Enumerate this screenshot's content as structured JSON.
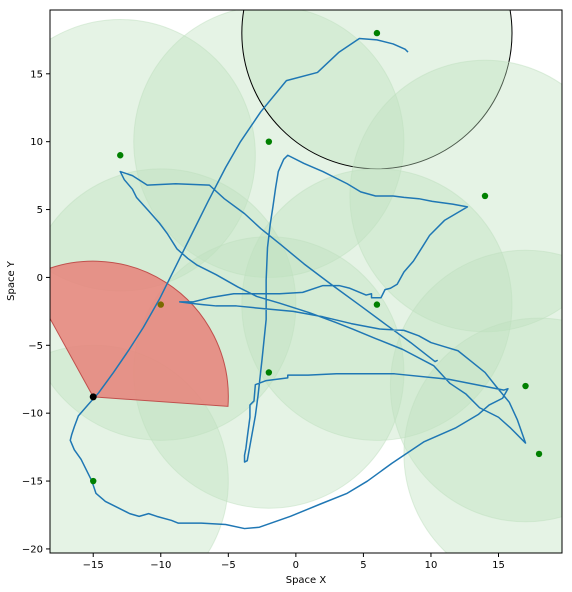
{
  "chart_data": {
    "type": "scatter",
    "xlabel": "Space X",
    "ylabel": "Space Y",
    "xlim": [
      -18.2,
      19.7
    ],
    "ylim": [
      -20.3,
      19.7
    ],
    "xticks": [
      -15,
      -10,
      -5,
      0,
      5,
      10,
      15
    ],
    "yticks": [
      -20,
      -15,
      -10,
      -5,
      0,
      5,
      10,
      15
    ],
    "grid": false,
    "colors": {
      "zone_fill": "#bfe0bf",
      "point": "#008000",
      "path": "#1f77b4",
      "sector": "#e8827a",
      "sector_edge": "#c0504d",
      "target_point": "#7a6a00",
      "agent": "#000000",
      "highlight_edge": "#000000"
    },
    "zones": [
      {
        "x": -13,
        "y": 9,
        "r": 10
      },
      {
        "x": -2,
        "y": 10,
        "r": 10
      },
      {
        "x": 6,
        "y": 18,
        "r": 10,
        "highlight": true
      },
      {
        "x": 14,
        "y": 6,
        "r": 10
      },
      {
        "x": -10,
        "y": -2,
        "r": 10
      },
      {
        "x": 6,
        "y": -2,
        "r": 10
      },
      {
        "x": -2,
        "y": -7,
        "r": 10
      },
      {
        "x": 17,
        "y": -8,
        "r": 10
      },
      {
        "x": 18,
        "y": -13,
        "r": 10
      },
      {
        "x": -15,
        "y": -15,
        "r": 10
      }
    ],
    "points": [
      {
        "x": 6,
        "y": 18
      },
      {
        "x": -13,
        "y": 9
      },
      {
        "x": -2,
        "y": 10
      },
      {
        "x": 14,
        "y": 6
      },
      {
        "x": 6,
        "y": -2
      },
      {
        "x": -2,
        "y": -7
      },
      {
        "x": 17,
        "y": -8
      },
      {
        "x": 18,
        "y": -13
      },
      {
        "x": -15,
        "y": -15
      }
    ],
    "target_point": {
      "x": -10,
      "y": -2
    },
    "agent": {
      "x": -15,
      "y": -8.8
    },
    "sector": {
      "x": -15,
      "y": -8.8,
      "r": 10,
      "theta1": -4,
      "theta2": 119
    },
    "path": [
      [
        8.3,
        16.6
      ],
      [
        8.1,
        16.8
      ],
      [
        7.2,
        17.2
      ],
      [
        6.0,
        17.5
      ],
      [
        4.7,
        17.6
      ],
      [
        3.2,
        16.6
      ],
      [
        1.6,
        15.1
      ],
      [
        -0.7,
        14.5
      ],
      [
        -2.6,
        12.2
      ],
      [
        -4.1,
        10.0
      ],
      [
        -5.2,
        8.1
      ],
      [
        -6.5,
        5.6
      ],
      [
        -7.7,
        3.2
      ],
      [
        -9.0,
        0.6
      ],
      [
        -10.1,
        -1.6
      ],
      [
        -11.3,
        -3.7
      ],
      [
        -12.4,
        -5.4
      ],
      [
        -13.5,
        -7.0
      ],
      [
        -14.6,
        -8.5
      ],
      [
        -15.4,
        -9.4
      ],
      [
        -16.1,
        -10.2
      ],
      [
        -16.4,
        -11.0
      ],
      [
        -16.6,
        -11.6
      ],
      [
        -16.7,
        -12.0
      ],
      [
        -16.4,
        -12.7
      ],
      [
        -15.9,
        -13.4
      ],
      [
        -15.5,
        -14.2
      ],
      [
        -15.1,
        -15.0
      ],
      [
        -14.8,
        -15.9
      ],
      [
        -14.1,
        -16.5
      ],
      [
        -13.1,
        -17.0
      ],
      [
        -12.3,
        -17.4
      ],
      [
        -11.6,
        -17.6
      ],
      [
        -10.9,
        -17.4
      ],
      [
        -10.3,
        -17.6
      ],
      [
        -9.2,
        -17.9
      ],
      [
        -8.7,
        -18.1
      ],
      [
        -7.0,
        -18.1
      ],
      [
        -5.2,
        -18.2
      ],
      [
        -3.8,
        -18.5
      ],
      [
        -2.7,
        -18.4
      ],
      [
        -0.4,
        -17.6
      ],
      [
        1.8,
        -16.7
      ],
      [
        3.8,
        -15.9
      ],
      [
        5.3,
        -15.0
      ],
      [
        7.1,
        -13.7
      ],
      [
        9.5,
        -12.1
      ],
      [
        11.8,
        -11.1
      ],
      [
        13.5,
        -10.1
      ],
      [
        14.3,
        -9.4
      ],
      [
        15.3,
        -8.9
      ],
      [
        15.7,
        -8.2
      ],
      [
        15.4,
        -8.3
      ],
      [
        11.3,
        -7.5
      ],
      [
        7.3,
        -7.1
      ],
      [
        5.1,
        -7.1
      ],
      [
        3.0,
        -7.1
      ],
      [
        0.9,
        -7.2
      ],
      [
        -0.6,
        -7.2
      ],
      [
        -0.6,
        -7.4
      ],
      [
        -2.2,
        -7.6
      ],
      [
        -3.0,
        -7.9
      ],
      [
        -3.1,
        -9.1
      ],
      [
        -3.4,
        -9.4
      ],
      [
        -3.4,
        -10.3
      ],
      [
        -3.6,
        -11.8
      ],
      [
        -3.7,
        -12.6
      ],
      [
        -3.8,
        -13.1
      ],
      [
        -3.8,
        -13.6
      ],
      [
        -3.6,
        -13.5
      ],
      [
        -3.4,
        -12.4
      ],
      [
        -3.0,
        -10.2
      ],
      [
        -2.8,
        -8.7
      ],
      [
        -2.5,
        -6.0
      ],
      [
        -2.2,
        -3.1
      ],
      [
        -2.2,
        -0.2
      ],
      [
        -2.1,
        2.2
      ],
      [
        -1.9,
        3.9
      ],
      [
        -1.7,
        5.2
      ],
      [
        -1.5,
        6.6
      ],
      [
        -1.3,
        7.8
      ],
      [
        -0.9,
        8.7
      ],
      [
        -0.6,
        9.0
      ],
      [
        0.6,
        8.4
      ],
      [
        2.0,
        7.8
      ],
      [
        3.8,
        6.9
      ],
      [
        4.8,
        6.3
      ],
      [
        5.9,
        6.0
      ],
      [
        7.2,
        6.0
      ],
      [
        8.0,
        5.9
      ],
      [
        9.1,
        5.8
      ],
      [
        10.1,
        5.6
      ],
      [
        11.6,
        5.4
      ],
      [
        12.7,
        5.2
      ],
      [
        11.0,
        4.2
      ],
      [
        9.9,
        3.1
      ],
      [
        9.4,
        2.3
      ],
      [
        8.7,
        1.2
      ],
      [
        8.0,
        0.4
      ],
      [
        7.5,
        -0.5
      ],
      [
        7.0,
        -0.8
      ],
      [
        6.6,
        -0.9
      ],
      [
        6.3,
        -1.5
      ],
      [
        5.6,
        -1.5
      ],
      [
        5.6,
        -1.2
      ],
      [
        5.2,
        -1.3
      ],
      [
        4.0,
        -0.8
      ],
      [
        3.2,
        -0.6
      ],
      [
        2.0,
        -0.6
      ],
      [
        0.5,
        -1.1
      ],
      [
        -1.2,
        -1.2
      ],
      [
        -2.8,
        -1.2
      ],
      [
        -4.6,
        -1.2
      ],
      [
        -6.4,
        -1.5
      ],
      [
        -7.6,
        -1.8
      ],
      [
        -8.6,
        -1.8
      ],
      [
        -7.8,
        -1.9
      ],
      [
        -6.9,
        -2.0
      ],
      [
        -5.9,
        -2.1
      ],
      [
        -4.4,
        -2.1
      ],
      [
        -2.4,
        -2.3
      ],
      [
        -0.2,
        -2.5
      ],
      [
        2.0,
        -2.9
      ],
      [
        4.1,
        -3.4
      ],
      [
        6.2,
        -3.8
      ],
      [
        8.0,
        -3.9
      ],
      [
        9.1,
        -4.3
      ],
      [
        10.0,
        -4.8
      ],
      [
        11.0,
        -5.1
      ],
      [
        12.0,
        -5.4
      ],
      [
        13.0,
        -6.2
      ],
      [
        14.0,
        -7.0
      ],
      [
        14.8,
        -8.0
      ],
      [
        15.8,
        -9.2
      ],
      [
        16.4,
        -10.5
      ],
      [
        17.0,
        -12.2
      ],
      [
        15.9,
        -11.1
      ],
      [
        15.0,
        -10.3
      ],
      [
        13.6,
        -9.6
      ],
      [
        12.6,
        -8.6
      ],
      [
        11.4,
        -7.8
      ],
      [
        10.2,
        -6.5
      ],
      [
        7.9,
        -5.3
      ],
      [
        5.9,
        -4.5
      ],
      [
        4.2,
        -3.8
      ],
      [
        2.9,
        -3.3
      ],
      [
        1.0,
        -2.6
      ],
      [
        -1.2,
        -1.9
      ],
      [
        -2.9,
        -1.4
      ],
      [
        -4.3,
        -0.7
      ],
      [
        -5.9,
        0.2
      ],
      [
        -7.3,
        0.9
      ],
      [
        -8.0,
        1.4
      ],
      [
        -8.8,
        2.1
      ],
      [
        -9.5,
        3.2
      ],
      [
        -10.1,
        4.0
      ],
      [
        -10.9,
        4.9
      ],
      [
        -11.8,
        5.9
      ],
      [
        -12.1,
        6.5
      ],
      [
        -12.7,
        7.2
      ],
      [
        -13.0,
        7.8
      ],
      [
        -12.1,
        7.5
      ],
      [
        -11.0,
        6.8
      ],
      [
        -8.9,
        6.9
      ],
      [
        -6.4,
        6.8
      ],
      [
        -5.3,
        5.8
      ],
      [
        -3.8,
        4.7
      ],
      [
        -2.6,
        3.6
      ],
      [
        -1.1,
        2.4
      ],
      [
        0.6,
        1.0
      ],
      [
        2.6,
        -0.5
      ],
      [
        4.8,
        -2.1
      ],
      [
        6.7,
        -3.5
      ],
      [
        8.5,
        -4.8
      ],
      [
        10.3,
        -6.2
      ],
      [
        10.5,
        -6.1
      ]
    ]
  }
}
